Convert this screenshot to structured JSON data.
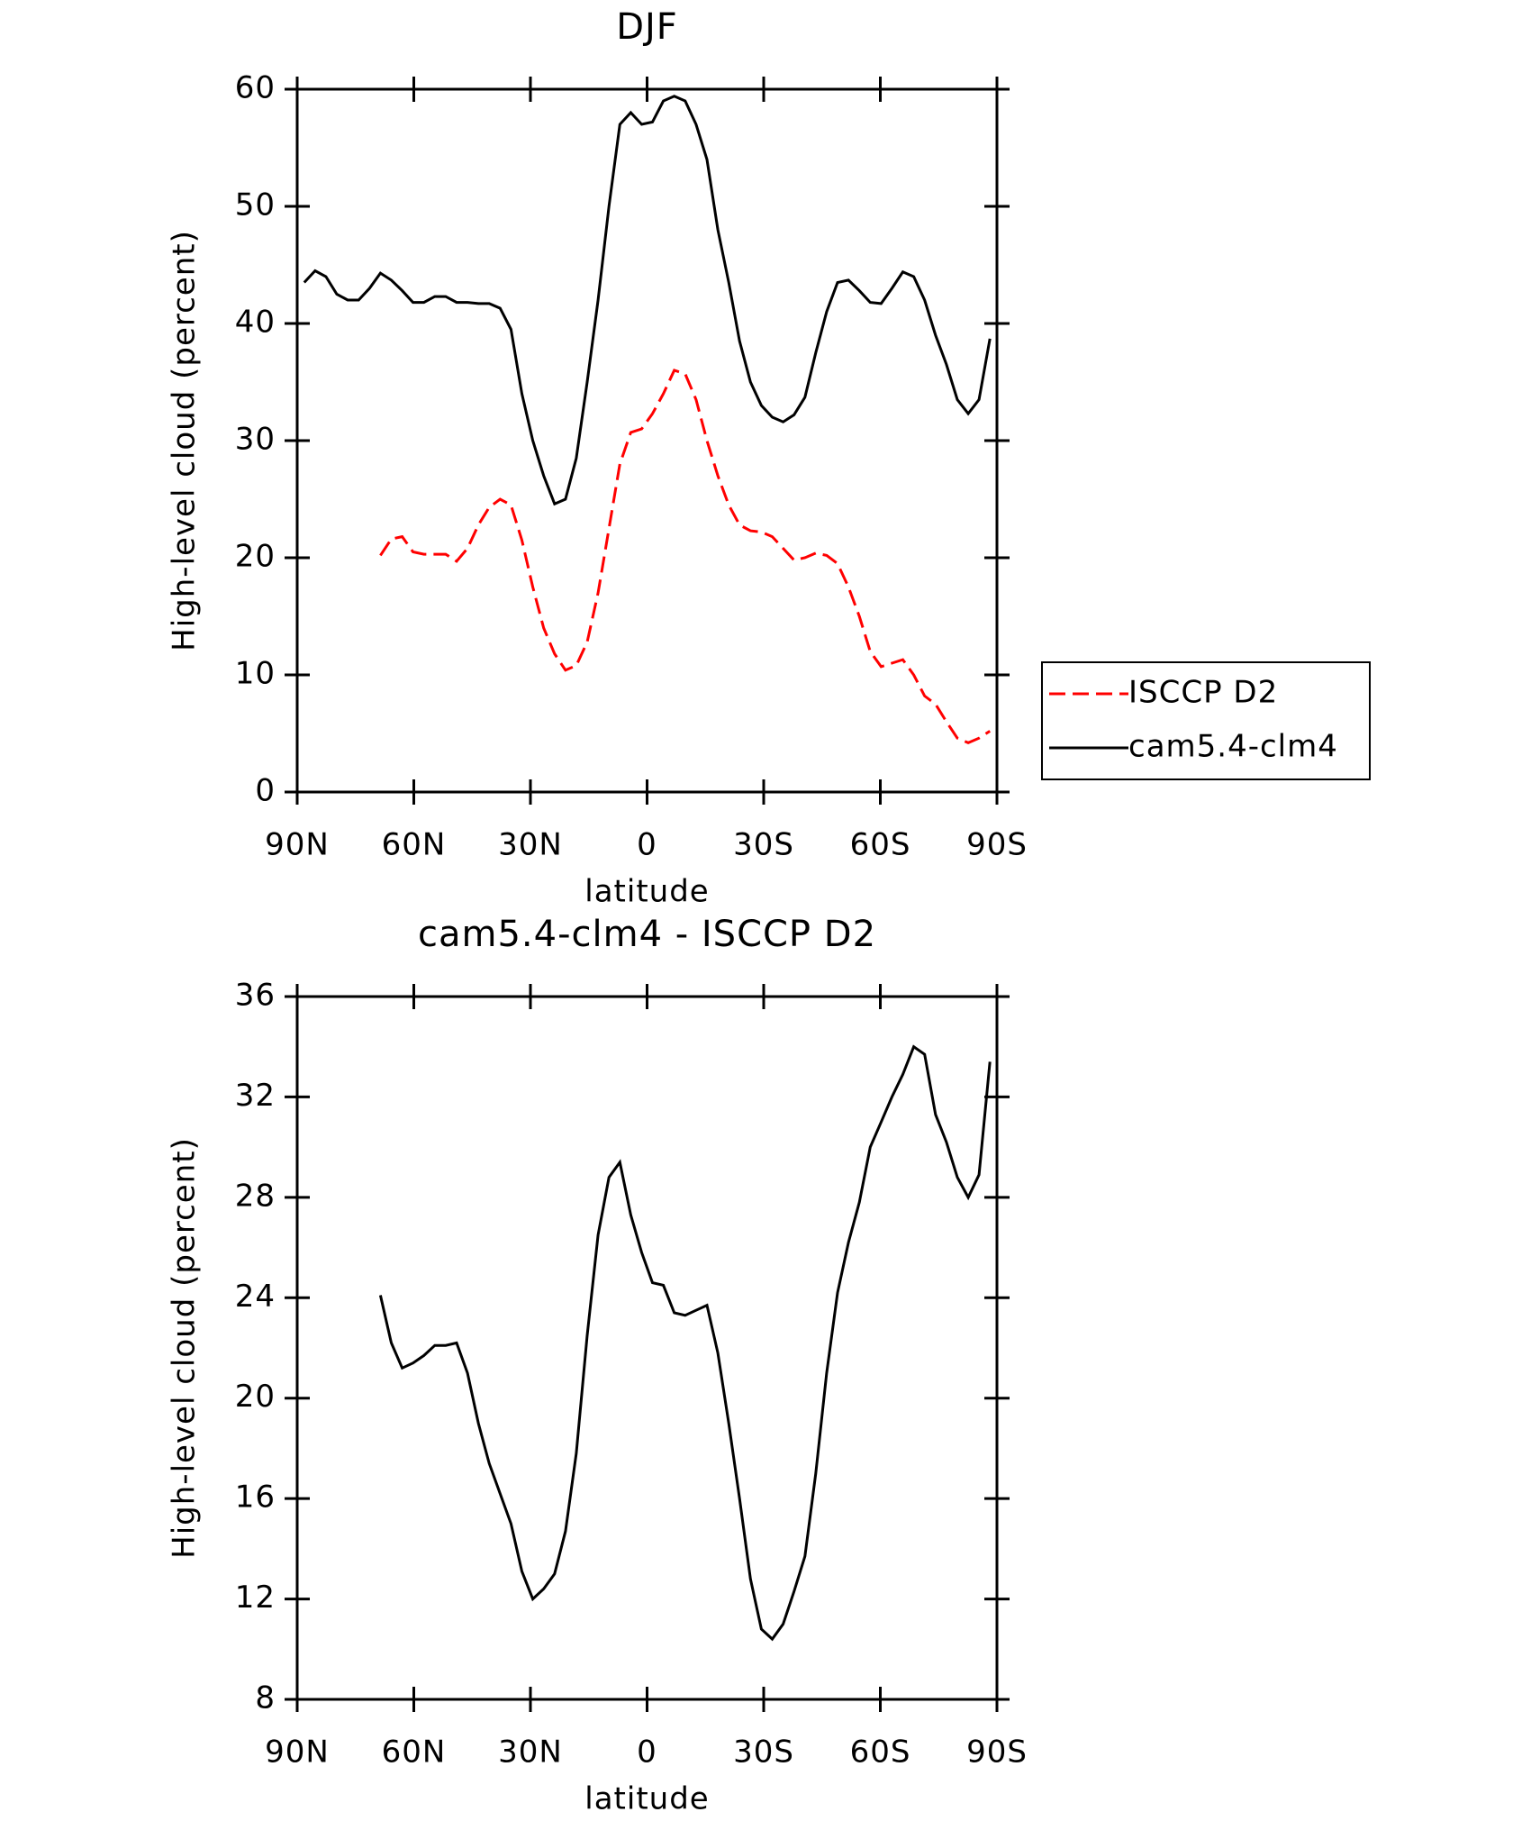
{
  "chart_data": [
    {
      "type": "line",
      "title": "DJF",
      "xlabel": "latitude",
      "ylabel": "High-level cloud (percent)",
      "x": [
        88.2,
        85.4,
        82.6,
        79.8,
        77,
        74.2,
        71.4,
        68.6,
        65.8,
        63,
        60.2,
        57.4,
        54.6,
        51.8,
        49,
        46.2,
        43.4,
        40.6,
        37.8,
        35,
        32.2,
        29.4,
        26.6,
        23.8,
        21,
        18.2,
        15.4,
        12.6,
        9.8,
        7,
        4.2,
        1.4,
        -1.4,
        -4.2,
        -7,
        -9.8,
        -12.6,
        -15.4,
        -18.2,
        -21,
        -23.8,
        -26.6,
        -29.4,
        -32.2,
        -35,
        -37.8,
        -40.6,
        -43.4,
        -46.2,
        -49,
        -51.8,
        -54.6,
        -57.4,
        -60.2,
        -63,
        -65.8,
        -68.6,
        -71.4,
        -74.2,
        -77,
        -79.8,
        -82.6,
        -85.4,
        -88.2
      ],
      "series": [
        {
          "name": "ISCCP D2",
          "color": "#ff0000",
          "dash": "dashed",
          "values": [
            null,
            null,
            null,
            null,
            null,
            null,
            null,
            20.2,
            21.6,
            21.8,
            20.5,
            20.3,
            20.3,
            20.3,
            19.7,
            20.8,
            22.8,
            24.3,
            25,
            24.5,
            21.5,
            17.5,
            14,
            11.8,
            10.4,
            10.8,
            12.8,
            17,
            22.5,
            28,
            30.7,
            31,
            32.3,
            34,
            36,
            35.7,
            33.5,
            30,
            27,
            24.5,
            22.8,
            22.3,
            22.2,
            21.8,
            20.8,
            19.8,
            20,
            20.4,
            20.2,
            19.5,
            17.5,
            15,
            12,
            10.7,
            11,
            11.3,
            10,
            8.2,
            7.5,
            6,
            4.6,
            4.2,
            4.6,
            5.2
          ]
        },
        {
          "name": "cam5.4-clm4",
          "color": "#000000",
          "dash": "solid",
          "values": [
            43.5,
            44.5,
            44,
            42.5,
            42,
            42,
            43,
            44.3,
            43.7,
            42.8,
            41.8,
            41.8,
            42.3,
            42.3,
            41.8,
            41.8,
            41.7,
            41.7,
            41.3,
            39.5,
            34,
            30,
            27,
            24.6,
            25,
            28.5,
            35,
            42,
            50,
            57,
            58,
            57,
            57.2,
            59,
            59.4,
            59,
            57,
            54,
            48,
            43.5,
            38.5,
            35,
            33,
            32,
            31.6,
            32.2,
            33.7,
            37.5,
            41,
            43.5,
            43.7,
            42.8,
            41.8,
            41.7,
            43,
            44.4,
            44,
            42,
            39,
            36.5,
            33.5,
            32.3,
            33.5,
            38.7
          ]
        }
      ],
      "xlim": [
        90,
        -90
      ],
      "ylim": [
        0,
        60
      ],
      "xticks": [
        {
          "value": 90,
          "label": "90N"
        },
        {
          "value": 60,
          "label": "60N"
        },
        {
          "value": 30,
          "label": "30N"
        },
        0,
        {
          "value": -30,
          "label": "30S"
        },
        {
          "value": -60,
          "label": "60S"
        },
        {
          "value": -90,
          "label": "90S"
        }
      ],
      "yticks": [
        0,
        10,
        20,
        30,
        40,
        50,
        60
      ],
      "legend": "right"
    },
    {
      "type": "line",
      "title": "cam5.4-clm4 - ISCCP D2",
      "xlabel": "latitude",
      "ylabel": "High-level cloud (percent)",
      "x": [
        88.2,
        85.4,
        82.6,
        79.8,
        77,
        74.2,
        71.4,
        68.6,
        65.8,
        63,
        60.2,
        57.4,
        54.6,
        51.8,
        49,
        46.2,
        43.4,
        40.6,
        37.8,
        35,
        32.2,
        29.4,
        26.6,
        23.8,
        21,
        18.2,
        15.4,
        12.6,
        9.8,
        7,
        4.2,
        1.4,
        -1.4,
        -4.2,
        -7,
        -9.8,
        -12.6,
        -15.4,
        -18.2,
        -21,
        -23.8,
        -26.6,
        -29.4,
        -32.2,
        -35,
        -37.8,
        -40.6,
        -43.4,
        -46.2,
        -49,
        -51.8,
        -54.6,
        -57.4,
        -60.2,
        -63,
        -65.8,
        -68.6,
        -71.4,
        -74.2,
        -77,
        -79.8,
        -82.6,
        -85.4,
        -88.2
      ],
      "series": [
        {
          "color": "#000000",
          "dash": "solid",
          "values": [
            null,
            null,
            null,
            null,
            null,
            null,
            null,
            24.1,
            22.2,
            21.2,
            21.4,
            21.7,
            22.1,
            22.1,
            22.2,
            21,
            19,
            17.4,
            16.2,
            15,
            13.1,
            12,
            12.4,
            13,
            14.7,
            17.8,
            22.5,
            26.5,
            28.8,
            29.4,
            27.3,
            25.8,
            24.6,
            24.5,
            23.4,
            23.3,
            23.5,
            23.7,
            21.8,
            19,
            16,
            12.8,
            10.8,
            10.4,
            11,
            12.3,
            13.7,
            17,
            21,
            24.2,
            26.2,
            27.8,
            30,
            31,
            32,
            32.9,
            34,
            33.7,
            31.3,
            30.2,
            28.8,
            28,
            28.9,
            33.4
          ]
        }
      ],
      "xlim": [
        90,
        -90
      ],
      "ylim": [
        8,
        36
      ],
      "xticks": [
        {
          "value": 90,
          "label": "90N"
        },
        {
          "value": 60,
          "label": "60N"
        },
        {
          "value": 30,
          "label": "30N"
        },
        0,
        {
          "value": -30,
          "label": "30S"
        },
        {
          "value": -60,
          "label": "60S"
        },
        {
          "value": -90,
          "label": "90S"
        }
      ],
      "yticks": [
        8,
        12,
        16,
        20,
        24,
        28,
        32,
        36
      ]
    }
  ]
}
